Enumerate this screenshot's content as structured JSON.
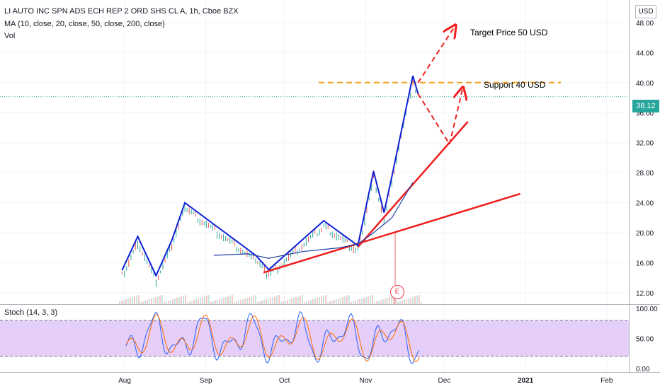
{
  "header": {
    "title": "LI AUTO INC SPN ADS ECH REP 2 ORD SHS CL A, 1h, Cboe BZX",
    "ma": "MA (10, close, 20, close, 50, close, 200, close)",
    "vol": "Vol"
  },
  "currency": "USD",
  "current_price": "38.12",
  "earnings_marker": "E",
  "annotations": {
    "target": "Target Price 50 USD",
    "support": "Support 40 USD"
  },
  "stoch_label": "Stoch (14, 3, 3)",
  "colors": {
    "blue": "#0d1fd6",
    "red": "#f01d1d",
    "orange": "#f59d1a",
    "stoch_band": "#e1c6f7",
    "price_tag": "#26a69a"
  },
  "chart_data": {
    "type": "line",
    "price_axis": {
      "ticks": [
        "48.00",
        "44.00",
        "40.00",
        "36.00",
        "32.00",
        "28.00",
        "24.00",
        "20.00",
        "16.00",
        "12.00"
      ],
      "ylim": [
        10.5,
        51
      ]
    },
    "time_axis": {
      "ticks": [
        "Aug",
        "Sep",
        "Oct",
        "Nov",
        "Dec",
        "2021",
        "Feb"
      ]
    },
    "stoch_axis": {
      "ticks": [
        "100.00",
        "50.00",
        "0.00"
      ],
      "ylim": [
        -5,
        105
      ],
      "bands": [
        80,
        20
      ]
    },
    "series": [
      {
        "id": "price-pattern-line",
        "color": "#0d1fd6",
        "x": [
          "2020-07-31",
          "2020-08-06",
          "2020-08-13",
          "2020-08-19",
          "2020-08-24",
          "2020-09-20",
          "2020-09-25",
          "2020-10-16",
          "2020-10-29",
          "2020-11-04",
          "2020-11-08",
          "2020-11-11",
          "2020-11-19",
          "2020-11-21"
        ],
        "y": [
          15.0,
          19.5,
          14.3,
          19.0,
          24.0,
          17.0,
          15.1,
          21.6,
          18.3,
          28.2,
          22.7,
          27.5,
          40.9,
          38.5
        ]
      },
      {
        "id": "moving-average-line",
        "color": "#1e3fa8",
        "x": [
          "2020-09-04",
          "2020-09-17",
          "2020-09-25",
          "2020-10-08",
          "2020-10-22",
          "2020-10-29",
          "2020-11-04",
          "2020-11-11",
          "2020-11-19"
        ],
        "y": [
          17.0,
          17.2,
          16.6,
          17.5,
          18.0,
          18.5,
          20.0,
          22.0,
          26.7
        ]
      }
    ],
    "trendlines": [
      {
        "id": "lower-trendline",
        "x": [
          "2020-09-23",
          "2020-12-30"
        ],
        "y": [
          14.7,
          25.2
        ]
      },
      {
        "id": "upper-trendline",
        "x": [
          "2020-10-29",
          "2020-12-10"
        ],
        "y": [
          18.1,
          34.8
        ]
      }
    ],
    "support_level": 40.0,
    "projections": [
      {
        "id": "target-projection",
        "x": [
          "2020-11-21",
          "2020-12-05"
        ],
        "y": [
          40.0,
          47.5
        ]
      },
      {
        "id": "pullback-projection",
        "x": [
          "2020-11-21",
          "2020-12-03",
          "2020-12-08"
        ],
        "y": [
          38.5,
          31.8,
          39.2
        ]
      }
    ]
  }
}
